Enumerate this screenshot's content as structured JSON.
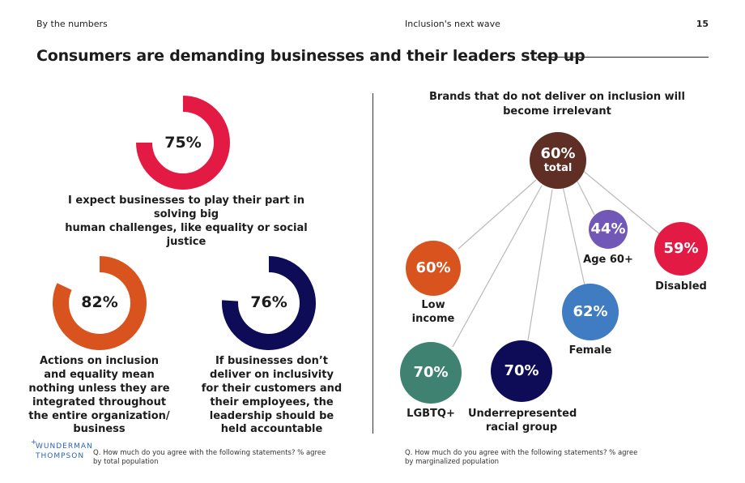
{
  "header": {
    "section": "By the numbers",
    "report": "Inclusion's next wave",
    "page": "15"
  },
  "title": "Consumers are demanding businesses and their leaders step up",
  "colors": {
    "red": "#e31b44",
    "orange": "#d9531e",
    "navy": "#0e0b57",
    "brown": "#5f2e24",
    "purple": "#7158b7",
    "blue": "#3f7cc1",
    "green": "#3f8272",
    "track": "#ffffff",
    "connector": "#b9b9b9"
  },
  "chart_data": [
    {
      "type": "pie",
      "title": "I expect businesses to play their part in solving big human challenges, like equality or social justice",
      "value": 75,
      "label": "75%"
    },
    {
      "type": "pie",
      "title": "Actions on inclusion and equality mean nothing unless they are integrated throughout the entire organization/ business",
      "value": 82,
      "label": "82%"
    },
    {
      "type": "pie",
      "title": "If businesses don’t deliver on inclusivity for their customers and their employees, the leadership should be held accountable",
      "value": 76,
      "label": "76%"
    },
    {
      "type": "bar",
      "title": "Brands that do not deliver on inclusion will become irrelevant",
      "total": {
        "value": 60,
        "label": "60%",
        "sublabel": "total"
      },
      "categories": [
        "Low income",
        "LGBTQ+",
        "Underrepresented racial group",
        "Female",
        "Age 60+",
        "Disabled"
      ],
      "values": [
        60,
        70,
        70,
        62,
        44,
        59
      ],
      "labels": [
        "60%",
        "70%",
        "70%",
        "62%",
        "44%",
        "59%"
      ]
    }
  ],
  "statements": {
    "main_lines": [
      "I expect businesses to play their part in solving big",
      "human challenges, like equality or social justice"
    ],
    "a_lines": [
      "Actions on inclusion",
      "and equality mean",
      "nothing unless they are",
      "integrated throughout",
      "the entire organization/",
      "business"
    ],
    "b_lines": [
      "If businesses don’t",
      "deliver on inclusivity",
      "for their customers and",
      "their employees, the",
      "leadership should be",
      "held accountable"
    ]
  },
  "right_title_lines": [
    "Brands that do not deliver on inclusion will",
    "become irrelevant"
  ],
  "segment_label_lines": {
    "low_income": [
      "Low",
      "income"
    ],
    "lgbtq": [
      "LGBTQ+"
    ],
    "racial": [
      "Underrepresented",
      "racial group"
    ],
    "female": [
      "Female"
    ],
    "age60": [
      "Age 60+"
    ],
    "disabled": [
      "Disabled"
    ]
  },
  "footer": {
    "logo_lines": [
      "WUNDERMAN",
      "THOMPSON"
    ],
    "logo_mark": "+",
    "note_left": "Q. How much do you agree with the following statements? % agree by total population",
    "note_right": "Q. How much do you agree with the following statements? % agree by marginalized population"
  }
}
